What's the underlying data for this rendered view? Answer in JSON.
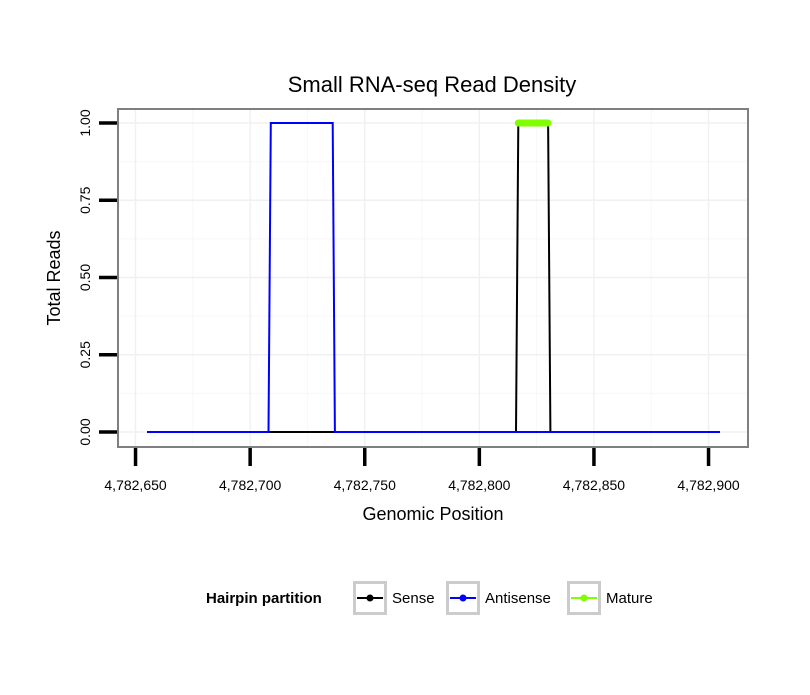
{
  "chart_data": {
    "type": "line",
    "title": "Small RNA-seq Read Density",
    "xlabel": "Genomic Position",
    "ylabel": "Total Reads",
    "xlim": [
      4782655,
      4782905
    ],
    "ylim": [
      0,
      1
    ],
    "x_ticks": [
      4782650,
      4782700,
      4782750,
      4782800,
      4782850,
      4782900
    ],
    "x_tick_labels": [
      "4,782,650",
      "4,782,700",
      "4,782,750",
      "4,782,800",
      "4,782,850",
      "4,782,900"
    ],
    "y_ticks": [
      0,
      0.25,
      0.5,
      0.75,
      1
    ],
    "y_tick_labels": [
      "0.00",
      "0.25",
      "0.50",
      "0.75",
      "1.00"
    ],
    "grid": true,
    "legend": {
      "title": "Hairpin partition",
      "position": "bottom",
      "entries": [
        {
          "label": "Sense",
          "color": "#000000"
        },
        {
          "label": "Antisense",
          "color": "#0000ff"
        },
        {
          "label": "Mature",
          "color": "#7fff00"
        }
      ]
    },
    "series": [
      {
        "name": "Sense",
        "color": "#000000",
        "x": [
          4782655,
          4782816,
          4782817,
          4782830,
          4782831,
          4782905
        ],
        "y": [
          0,
          0,
          1,
          1,
          0,
          0
        ]
      },
      {
        "name": "Antisense",
        "color": "#0000ff",
        "x": [
          4782655,
          4782708,
          4782709,
          4782736,
          4782737,
          4782816,
          4782831,
          4782905
        ],
        "y": [
          0,
          0,
          1,
          1,
          0,
          0,
          0,
          0
        ]
      },
      {
        "name": "Mature",
        "color": "#7fff00",
        "x": [
          4782817,
          4782830
        ],
        "y": [
          1,
          1
        ]
      }
    ]
  }
}
